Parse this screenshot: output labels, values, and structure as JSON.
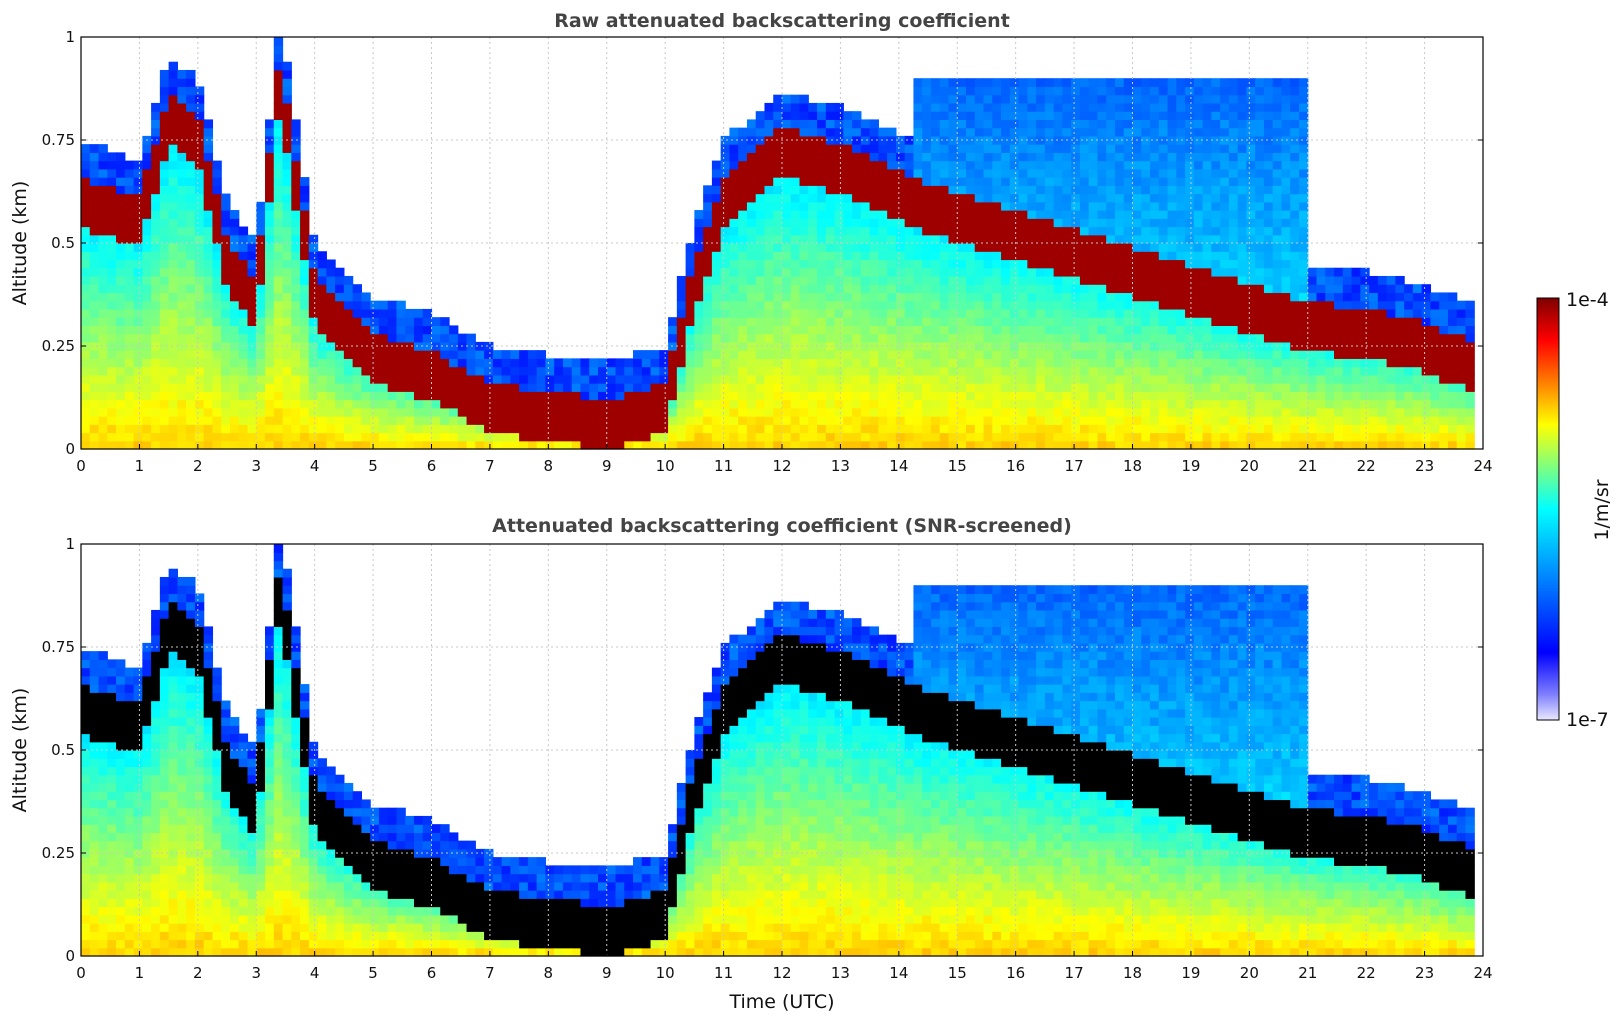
{
  "chart_data": [
    {
      "type": "heatmap",
      "title": "Raw attenuated backscattering coefficient",
      "xlabel": "",
      "ylabel": "Altitude (km)",
      "xlim": [
        0,
        24
      ],
      "ylim": [
        0,
        1
      ],
      "xticks": [
        "0",
        "1",
        "2",
        "3",
        "4",
        "5",
        "6",
        "7",
        "8",
        "9",
        "10",
        "11",
        "12",
        "13",
        "14",
        "15",
        "16",
        "17",
        "18",
        "19",
        "20",
        "21",
        "22",
        "23",
        "24"
      ],
      "yticks": [
        "0",
        "0.25",
        "0.5",
        "0.75",
        "1"
      ],
      "grid": true,
      "layer_profile": [
        [
          0,
          0.6
        ],
        [
          1,
          0.55
        ],
        [
          1.5,
          0.8
        ],
        [
          2,
          0.75
        ],
        [
          2.5,
          0.45
        ],
        [
          3,
          0.35
        ],
        [
          3.4,
          0.9
        ],
        [
          4,
          0.35
        ],
        [
          5,
          0.22
        ],
        [
          6,
          0.18
        ],
        [
          7,
          0.1
        ],
        [
          8,
          0.08
        ],
        [
          9,
          0.06
        ],
        [
          10,
          0.1
        ],
        [
          10.5,
          0.4
        ],
        [
          11,
          0.6
        ],
        [
          12,
          0.72
        ],
        [
          13,
          0.68
        ],
        [
          14,
          0.62
        ],
        [
          14.2,
          0.6
        ],
        [
          21,
          0.3
        ],
        [
          22,
          0.28
        ],
        [
          23,
          0.25
        ],
        [
          23.8,
          0.2
        ]
      ],
      "colorbar": {
        "min_label": "1e-7",
        "max_label": "1e-4",
        "label": "1/m/sr"
      }
    },
    {
      "type": "heatmap",
      "title": "Attenuated backscattering coefficient (SNR-screened)",
      "xlabel": "Time (UTC)",
      "ylabel": "Altitude (km)",
      "xlim": [
        0,
        24
      ],
      "ylim": [
        0,
        1
      ],
      "xticks": [
        "0",
        "1",
        "2",
        "3",
        "4",
        "5",
        "6",
        "7",
        "8",
        "9",
        "10",
        "11",
        "12",
        "13",
        "14",
        "15",
        "16",
        "17",
        "18",
        "19",
        "20",
        "21",
        "22",
        "23",
        "24"
      ],
      "yticks": [
        "0",
        "0.25",
        "0.5",
        "0.75",
        "1"
      ],
      "grid": true,
      "layer_profile": [
        [
          0,
          0.6
        ],
        [
          1,
          0.55
        ],
        [
          1.5,
          0.8
        ],
        [
          2,
          0.75
        ],
        [
          2.5,
          0.45
        ],
        [
          3,
          0.35
        ],
        [
          3.4,
          0.9
        ],
        [
          4,
          0.35
        ],
        [
          5,
          0.22
        ],
        [
          6,
          0.18
        ],
        [
          7,
          0.1
        ],
        [
          8,
          0.08
        ],
        [
          9,
          0.06
        ],
        [
          10,
          0.1
        ],
        [
          10.5,
          0.4
        ],
        [
          11,
          0.6
        ],
        [
          12,
          0.72
        ],
        [
          13,
          0.68
        ],
        [
          14,
          0.62
        ],
        [
          14.2,
          0.6
        ],
        [
          21,
          0.3
        ],
        [
          22,
          0.28
        ],
        [
          23,
          0.25
        ],
        [
          23.8,
          0.2
        ]
      ],
      "colorbar": {
        "min_label": "1e-7",
        "max_label": "1e-4",
        "label": "1/m/sr"
      }
    }
  ],
  "colorbar": {
    "min_label": "1e-7",
    "max_label": "1e-4",
    "label": "1/m/sr"
  },
  "colors": {
    "jet": [
      "#00007f",
      "#0000ff",
      "#007fff",
      "#00ffff",
      "#7fff7f",
      "#ffff00",
      "#ff7f00",
      "#ff0000",
      "#7f0000"
    ],
    "screened_peak": "#000000",
    "grid": "#c8c8c8",
    "title": "#444444"
  }
}
